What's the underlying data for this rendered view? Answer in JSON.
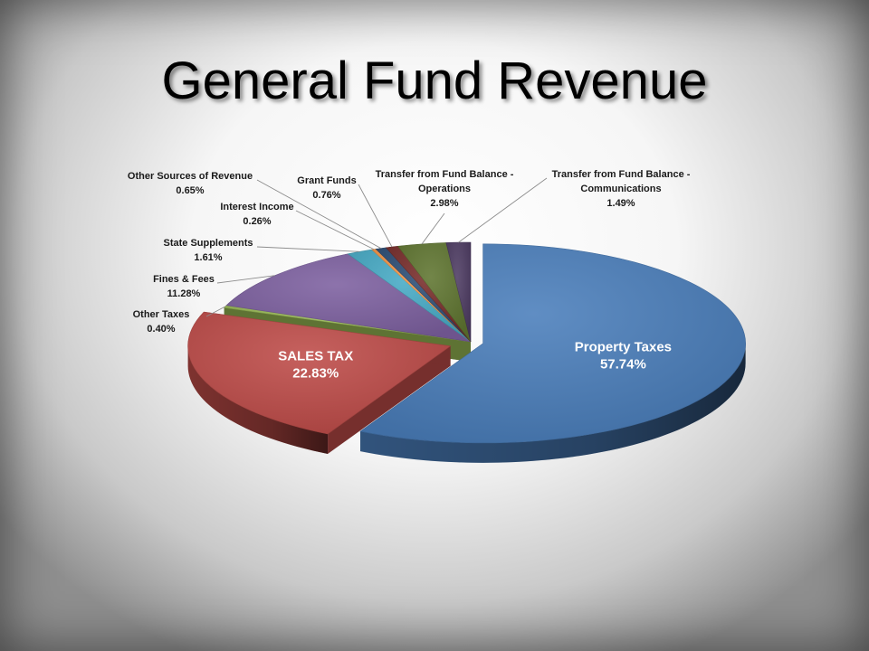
{
  "slide": {
    "title": "General Fund Revenue"
  },
  "chart_data": {
    "type": "pie",
    "title": "General Fund Revenue",
    "slices": [
      {
        "label": "Property Taxes",
        "value": 57.74,
        "value_label": "57.74%",
        "color": "#4a7ebb",
        "exploded": true
      },
      {
        "label": "SALES TAX",
        "value": 22.83,
        "value_label": "22.83%",
        "color": "#be4b48",
        "exploded": true
      },
      {
        "label": "Other Taxes",
        "value": 0.4,
        "value_label": "0.40%",
        "color": "#98b954"
      },
      {
        "label": "Fines & Fees",
        "value": 11.28,
        "value_label": "11.28%",
        "color": "#7d60a0"
      },
      {
        "label": "State Supplements",
        "value": 1.61,
        "value_label": "1.61%",
        "color": "#46aac5"
      },
      {
        "label": "Interest Income",
        "value": 0.26,
        "value_label": "0.26%",
        "color": "#f79646"
      },
      {
        "label": "Other Sources of Revenue",
        "value": 0.65,
        "value_label": "0.65%",
        "color": "#2c4d75"
      },
      {
        "label": "Grant Funds",
        "value": 0.76,
        "value_label": "0.76%",
        "color": "#772c2a"
      },
      {
        "label": "Transfer from Fund Balance - Operations",
        "value": 2.98,
        "value_label": "2.98%",
        "color": "#5f7530"
      },
      {
        "label": "Transfer from Fund Balance - Communications",
        "value": 1.49,
        "value_label": "1.49%",
        "color": "#4d3b62"
      }
    ],
    "legend": "none",
    "labels": "outside with leader lines; two largest slices labelled inside"
  }
}
